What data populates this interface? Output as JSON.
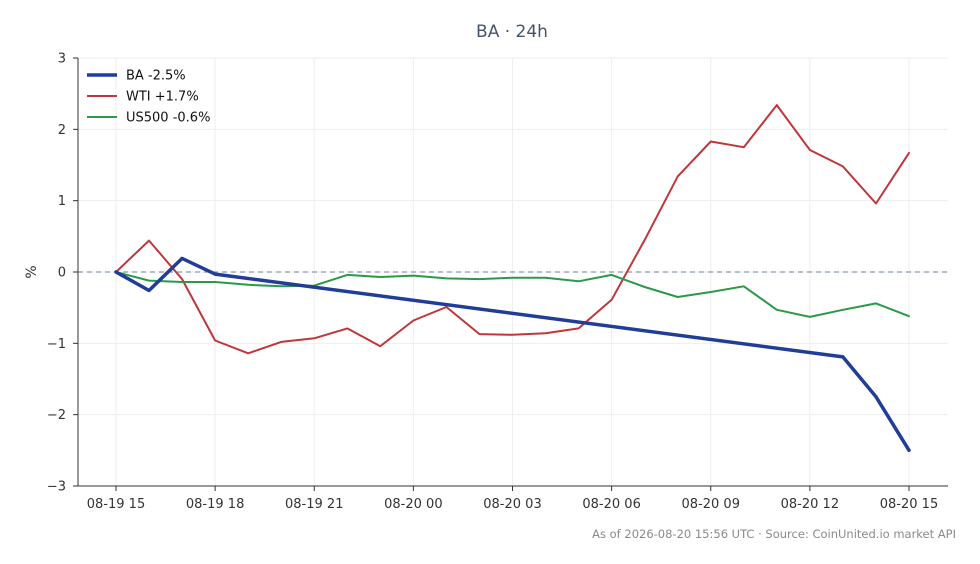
{
  "chart_data": {
    "type": "line",
    "title": "BA · 24h",
    "xlabel": "",
    "ylabel": "%",
    "ylim": [
      -3,
      3
    ],
    "yticks": [
      3,
      2,
      1,
      0,
      -1,
      -2,
      -3
    ],
    "ytick_labels": [
      "3",
      "2",
      "1",
      "0",
      "−1",
      "−2",
      "−3"
    ],
    "xticks": [
      0,
      3,
      6,
      9,
      12,
      15,
      18,
      21,
      24
    ],
    "xtick_labels": [
      "08-19 15",
      "08-19 18",
      "08-19 21",
      "08-20 00",
      "08-20 03",
      "08-20 06",
      "08-20 09",
      "08-20 12",
      "08-20 15"
    ],
    "x": [
      0,
      1,
      2,
      3,
      4,
      5,
      6,
      7,
      8,
      9,
      10,
      11,
      12,
      13,
      14,
      15,
      16,
      17,
      18,
      19,
      20,
      21,
      22,
      23,
      24
    ],
    "series": [
      {
        "name": "BA -2.5%",
        "color": "#1f3d99",
        "x": [
          0,
          1,
          2,
          3,
          22,
          23,
          24
        ],
        "values": [
          0,
          -0.26,
          0.19,
          -0.03,
          -1.19,
          -1.75,
          -2.5
        ]
      },
      {
        "name": "WTI +1.7%",
        "color": "#c0363a",
        "x": [
          0,
          1,
          2,
          3,
          4,
          5,
          6,
          7,
          8,
          9,
          10,
          11,
          12,
          13,
          14,
          15,
          16,
          17,
          18,
          19,
          20,
          21,
          22,
          23,
          24
        ],
        "values": [
          0,
          0.44,
          -0.1,
          -0.96,
          -1.14,
          -0.98,
          -0.93,
          -0.79,
          -1.04,
          -0.68,
          -0.49,
          -0.87,
          -0.88,
          -0.86,
          -0.79,
          -0.39,
          0.45,
          1.34,
          1.83,
          1.75,
          2.34,
          1.71,
          1.48,
          0.96,
          1.67
        ]
      },
      {
        "name": "US500 -0.6%",
        "color": "#2a9a47",
        "x": [
          0,
          1,
          2,
          3,
          4,
          5,
          6,
          7,
          8,
          9,
          10,
          11,
          12,
          13,
          14,
          15,
          16,
          17,
          18,
          19,
          20,
          21,
          22,
          23,
          24
        ],
        "values": [
          0,
          -0.12,
          -0.14,
          -0.14,
          -0.18,
          -0.2,
          -0.19,
          -0.04,
          -0.07,
          -0.05,
          -0.09,
          -0.1,
          -0.08,
          -0.08,
          -0.13,
          -0.04,
          -0.21,
          -0.35,
          -0.28,
          -0.2,
          -0.53,
          -0.63,
          -0.53,
          -0.44,
          -0.62
        ]
      }
    ],
    "zero_line": true,
    "grid": true,
    "legend_position": "top-left"
  },
  "footer": "As of 2026-08-20 15:56 UTC · Source: CoinUnited.io market API"
}
